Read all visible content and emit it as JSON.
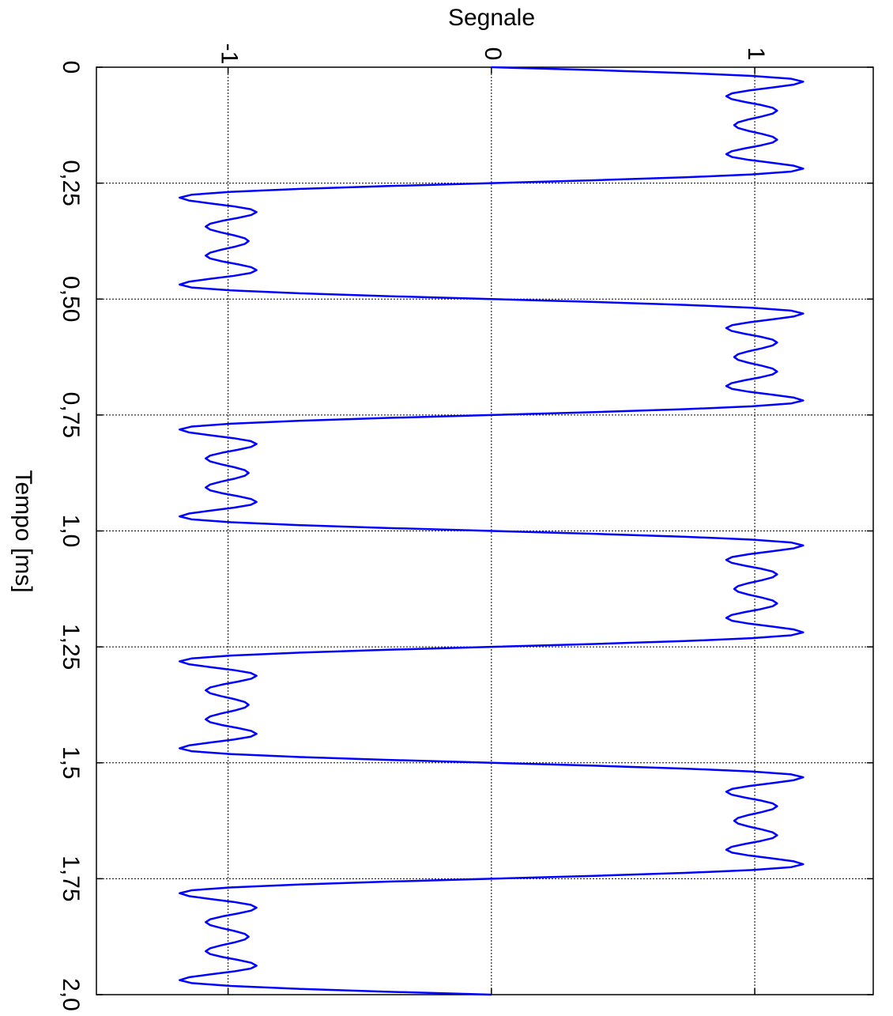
{
  "chart_data": {
    "type": "line",
    "title": "Segnale",
    "x_label": "Tempo [ms]",
    "x": [
      0,
      0.00625,
      0.0125,
      0.01875,
      0.025,
      0.03125,
      0.0375,
      0.04375,
      0.05,
      0.05625,
      0.0625,
      0.06875,
      0.075,
      0.08125,
      0.0875,
      0.09375,
      0.1,
      0.10625,
      0.1125,
      0.11875,
      0.125,
      0.13125,
      0.1375,
      0.14375,
      0.15,
      0.15625,
      0.1625,
      0.16875,
      0.175,
      0.18125,
      0.1875,
      0.19375,
      0.2,
      0.20625,
      0.2125,
      0.21875,
      0.225,
      0.23125,
      0.2375,
      0.24375,
      0.25,
      0.25625,
      0.2625,
      0.26875,
      0.275,
      0.28125,
      0.2875,
      0.29375,
      0.3,
      0.30625,
      0.3125,
      0.31875,
      0.325,
      0.33125,
      0.3375,
      0.34375,
      0.35,
      0.35625,
      0.3625,
      0.36875,
      0.375,
      0.38125,
      0.3875,
      0.39375,
      0.4,
      0.40625,
      0.4125,
      0.41875,
      0.425,
      0.43125,
      0.4375,
      0.44375,
      0.45,
      0.45625,
      0.4625,
      0.46875,
      0.475,
      0.48125,
      0.4875,
      0.49375,
      0.5,
      0.50625,
      0.5125,
      0.51875,
      0.525,
      0.53125,
      0.5375,
      0.54375,
      0.55,
      0.55625,
      0.5625,
      0.56875,
      0.575,
      0.58125,
      0.5875,
      0.59375,
      0.6,
      0.60625,
      0.6125,
      0.61875,
      0.625,
      0.63125,
      0.6375,
      0.64375,
      0.65,
      0.65625,
      0.6625,
      0.66875,
      0.675,
      0.68125,
      0.6875,
      0.69375,
      0.7,
      0.70625,
      0.7125,
      0.71875,
      0.725,
      0.73125,
      0.7375,
      0.74375,
      0.75,
      0.75625,
      0.7625,
      0.76875,
      0.775,
      0.78125,
      0.7875,
      0.79375,
      0.8,
      0.80625,
      0.8125,
      0.81875,
      0.825,
      0.83125,
      0.8375,
      0.84375,
      0.85,
      0.85625,
      0.8625,
      0.86875,
      0.875,
      0.88125,
      0.8875,
      0.89375,
      0.9,
      0.90625,
      0.9125,
      0.91875,
      0.925,
      0.93125,
      0.9375,
      0.94375,
      0.95,
      0.95625,
      0.9625,
      0.96875,
      0.975,
      0.98125,
      0.9875,
      0.99375,
      1,
      1.00625,
      1.0125,
      1.01875,
      1.025,
      1.03125,
      1.0375,
      1.04375,
      1.05,
      1.05625,
      1.0625,
      1.06875,
      1.075,
      1.08125,
      1.0875,
      1.09375,
      1.1,
      1.10625,
      1.1125,
      1.11875,
      1.125,
      1.13125,
      1.1375,
      1.14375,
      1.15,
      1.15625,
      1.1625,
      1.16875,
      1.175,
      1.18125,
      1.1875,
      1.19375,
      1.2,
      1.20625,
      1.2125,
      1.21875,
      1.225,
      1.23125,
      1.2375,
      1.24375,
      1.25,
      1.25625,
      1.2625,
      1.26875,
      1.275,
      1.28125,
      1.2875,
      1.29375,
      1.3,
      1.30625,
      1.3125,
      1.31875,
      1.325,
      1.33125,
      1.3375,
      1.34375,
      1.35,
      1.35625,
      1.3625,
      1.36875,
      1.375,
      1.38125,
      1.3875,
      1.39375,
      1.4,
      1.40625,
      1.4125,
      1.41875,
      1.425,
      1.43125,
      1.4375,
      1.44375,
      1.45,
      1.45625,
      1.4625,
      1.46875,
      1.475,
      1.48125,
      1.4875,
      1.49375,
      1.5,
      1.50625,
      1.5125,
      1.51875,
      1.525,
      1.53125,
      1.5375,
      1.54375,
      1.55,
      1.55625,
      1.5625,
      1.56875,
      1.575,
      1.58125,
      1.5875,
      1.59375,
      1.6,
      1.60625,
      1.6125,
      1.61875,
      1.625,
      1.63125,
      1.6375,
      1.64375,
      1.65,
      1.65625,
      1.6625,
      1.66875,
      1.675,
      1.68125,
      1.6875,
      1.69375,
      1.7,
      1.70625,
      1.7125,
      1.71875,
      1.725,
      1.73125,
      1.7375,
      1.74375,
      1.75,
      1.75625,
      1.7625,
      1.76875,
      1.775,
      1.78125,
      1.7875,
      1.79375,
      1.8,
      1.80625,
      1.8125,
      1.81875,
      1.825,
      1.83125,
      1.8375,
      1.84375,
      1.85,
      1.85625,
      1.8625,
      1.86875,
      1.875,
      1.88125,
      1.8875,
      1.89375,
      1.9,
      1.90625,
      1.9125,
      1.91875,
      1.925,
      1.93125,
      1.9375,
      1.94375,
      1.95,
      1.95625,
      1.9625,
      1.96875,
      1.975,
      1.98125,
      1.9875,
      1.99375,
      2
    ],
    "values": [
      0,
      0.391,
      0.734,
      0.989,
      1.139,
      1.184,
      1.149,
      1.068,
      0.979,
      0.914,
      0.892,
      0.912,
      0.963,
      1.022,
      1.068,
      1.085,
      1.068,
      1.027,
      0.977,
      0.937,
      0.922,
      0.937,
      0.977,
      1.027,
      1.068,
      1.085,
      1.068,
      1.022,
      0.963,
      0.912,
      0.892,
      0.914,
      0.979,
      1.068,
      1.149,
      1.184,
      1.139,
      0.989,
      0.734,
      0.391,
      0,
      -0.391,
      -0.734,
      -0.989,
      -1.139,
      -1.184,
      -1.149,
      -1.068,
      -0.979,
      -0.914,
      -0.892,
      -0.912,
      -0.963,
      -1.022,
      -1.068,
      -1.085,
      -1.068,
      -1.027,
      -0.977,
      -0.937,
      -0.922,
      -0.937,
      -0.977,
      -1.027,
      -1.068,
      -1.085,
      -1.068,
      -1.022,
      -0.963,
      -0.912,
      -0.892,
      -0.914,
      -0.979,
      -1.068,
      -1.149,
      -1.184,
      -1.139,
      -0.989,
      -0.734,
      -0.391,
      0,
      0.391,
      0.734,
      0.989,
      1.139,
      1.184,
      1.149,
      1.068,
      0.979,
      0.914,
      0.892,
      0.912,
      0.963,
      1.022,
      1.068,
      1.085,
      1.068,
      1.027,
      0.977,
      0.937,
      0.922,
      0.937,
      0.977,
      1.027,
      1.068,
      1.085,
      1.068,
      1.022,
      0.963,
      0.912,
      0.892,
      0.914,
      0.979,
      1.068,
      1.149,
      1.184,
      1.139,
      0.989,
      0.734,
      0.391,
      0,
      -0.391,
      -0.734,
      -0.989,
      -1.139,
      -1.184,
      -1.149,
      -1.068,
      -0.979,
      -0.914,
      -0.892,
      -0.912,
      -0.963,
      -1.022,
      -1.068,
      -1.085,
      -1.068,
      -1.027,
      -0.977,
      -0.937,
      -0.922,
      -0.937,
      -0.977,
      -1.027,
      -1.068,
      -1.085,
      -1.068,
      -1.022,
      -0.963,
      -0.912,
      -0.892,
      -0.914,
      -0.979,
      -1.068,
      -1.149,
      -1.184,
      -1.139,
      -0.989,
      -0.734,
      -0.391,
      0,
      0.391,
      0.734,
      0.989,
      1.139,
      1.184,
      1.149,
      1.068,
      0.979,
      0.914,
      0.892,
      0.912,
      0.963,
      1.022,
      1.068,
      1.085,
      1.068,
      1.027,
      0.977,
      0.937,
      0.922,
      0.937,
      0.977,
      1.027,
      1.068,
      1.085,
      1.068,
      1.022,
      0.963,
      0.912,
      0.892,
      0.914,
      0.979,
      1.068,
      1.149,
      1.184,
      1.139,
      0.989,
      0.734,
      0.391,
      0,
      -0.391,
      -0.734,
      -0.989,
      -1.139,
      -1.184,
      -1.149,
      -1.068,
      -0.979,
      -0.914,
      -0.892,
      -0.912,
      -0.963,
      -1.022,
      -1.068,
      -1.085,
      -1.068,
      -1.027,
      -0.977,
      -0.937,
      -0.922,
      -0.937,
      -0.977,
      -1.027,
      -1.068,
      -1.085,
      -1.068,
      -1.022,
      -0.963,
      -0.912,
      -0.892,
      -0.914,
      -0.979,
      -1.068,
      -1.149,
      -1.184,
      -1.139,
      -0.989,
      -0.734,
      -0.391,
      0,
      0.391,
      0.734,
      0.989,
      1.139,
      1.184,
      1.149,
      1.068,
      0.979,
      0.914,
      0.892,
      0.912,
      0.963,
      1.022,
      1.068,
      1.085,
      1.068,
      1.027,
      0.977,
      0.937,
      0.922,
      0.937,
      0.977,
      1.027,
      1.068,
      1.085,
      1.068,
      1.022,
      0.963,
      0.912,
      0.892,
      0.914,
      0.979,
      1.068,
      1.149,
      1.184,
      1.139,
      0.989,
      0.734,
      0.391,
      0,
      -0.391,
      -0.734,
      -0.989,
      -1.139,
      -1.184,
      -1.149,
      -1.068,
      -0.979,
      -0.914,
      -0.892,
      -0.912,
      -0.963,
      -1.022,
      -1.068,
      -1.085,
      -1.068,
      -1.027,
      -0.977,
      -0.937,
      -0.922,
      -0.937,
      -0.977,
      -1.027,
      -1.068,
      -1.085,
      -1.068,
      -1.022,
      -0.963,
      -0.912,
      -0.892,
      -0.914,
      -0.979,
      -1.068,
      -1.149,
      -1.184,
      -1.139,
      -0.989,
      -0.734,
      -0.391,
      0
    ],
    "color": "#0000ff",
    "xlim": [
      0,
      2
    ],
    "xticks": [
      0,
      {
        "value": 0.25,
        "label": "0,25"
      },
      {
        "value": 0.5,
        "label": "0,50"
      },
      {
        "value": 0.75,
        "label": "0,75"
      },
      {
        "value": 1,
        "label": "1,0"
      },
      {
        "value": 1.25,
        "label": "1,25"
      },
      {
        "value": 1.5,
        "label": "1,5"
      },
      {
        "value": 1.75,
        "label": "1,75"
      },
      {
        "value": 2,
        "label": "2,0"
      }
    ],
    "ylim": [
      -1.5,
      1.45
    ],
    "yticks": [
      -1,
      0,
      1
    ],
    "grid": true
  }
}
